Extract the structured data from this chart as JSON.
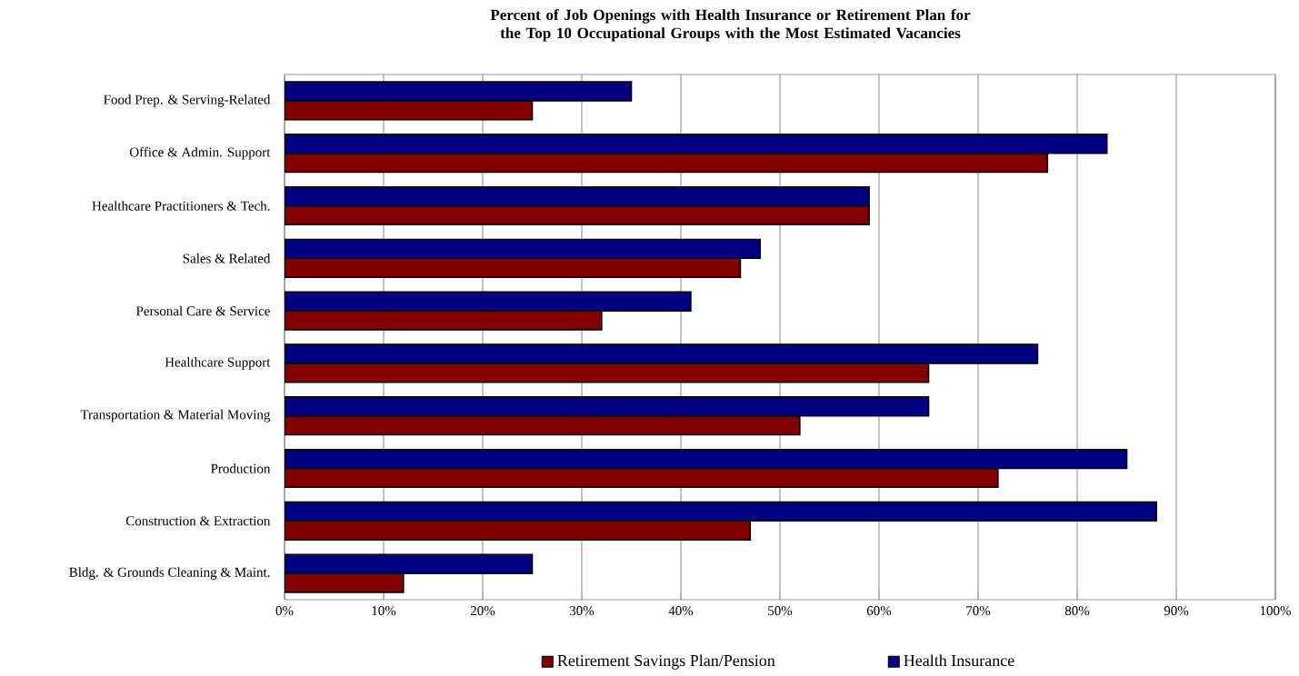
{
  "chart_data": {
    "type": "bar",
    "orientation": "horizontal",
    "title": "Percent of Job Openings with Health Insurance or Retirement Plan for the Top 10 Occupational Groups with the Most Estimated Vacancies",
    "categories": [
      "Food Prep. & Serving-Related",
      "Office & Admin. Support",
      "Healthcare Practitioners & Tech.",
      "Sales & Related",
      "Personal Care & Service",
      "Healthcare Support",
      "Transportation & Material Moving",
      "Production",
      "Construction & Extraction",
      "Bldg. & Grounds Cleaning & Maint."
    ],
    "series": [
      {
        "name": "Retirement Savings Plan/Pension",
        "color": "#800000",
        "values": [
          25,
          77,
          59,
          46,
          32,
          65,
          52,
          72,
          47,
          12
        ]
      },
      {
        "name": "Health Insurance",
        "color": "#000080",
        "values": [
          35,
          83,
          59,
          48,
          41,
          76,
          65,
          85,
          88,
          25
        ]
      }
    ],
    "xlim": [
      0,
      100
    ],
    "xticks": [
      {
        "value": 0,
        "label": "0%"
      },
      {
        "value": 10,
        "label": "10%"
      },
      {
        "value": 20,
        "label": "20%"
      },
      {
        "value": 30,
        "label": "30%"
      },
      {
        "value": 40,
        "label": "40%"
      },
      {
        "value": 50,
        "label": "50%"
      },
      {
        "value": 60,
        "label": "60%"
      },
      {
        "value": 70,
        "label": "70%"
      },
      {
        "value": 80,
        "label": "80%"
      },
      {
        "value": 90,
        "label": "90%"
      },
      {
        "value": 100,
        "label": "100%"
      }
    ],
    "grid": "x",
    "legend": "bottom"
  }
}
